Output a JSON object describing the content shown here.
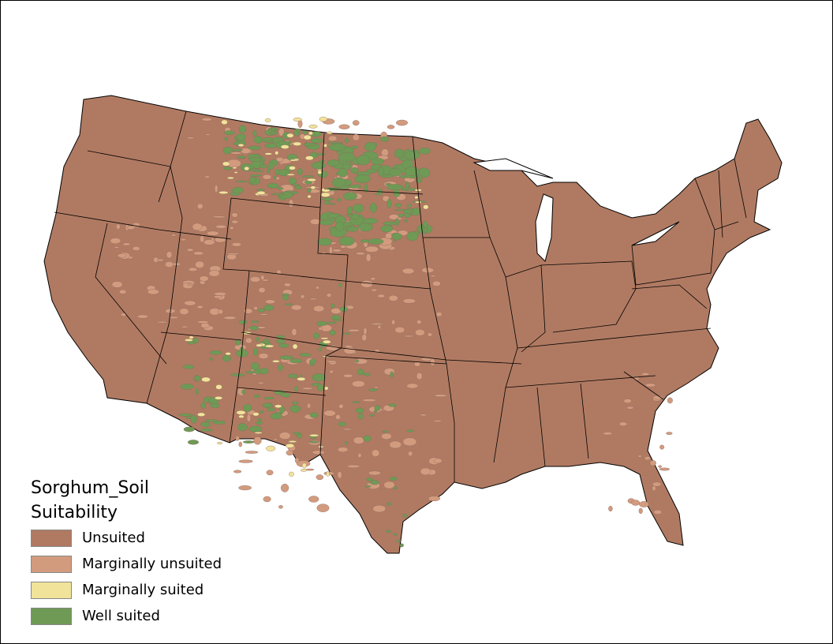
{
  "legend": {
    "title_line1": "Sorghum_Soil",
    "title_line2": "Suitability",
    "items": [
      {
        "label": "Unsuited",
        "color": "#B07A62"
      },
      {
        "label": "Marginally unsuited",
        "color": "#D29B7E"
      },
      {
        "label": "Marginally suited",
        "color": "#F2E39A"
      },
      {
        "label": "Well suited",
        "color": "#6E9A55"
      }
    ]
  },
  "map": {
    "extent": "Contiguous United States",
    "boundary_color": "#000000",
    "no_data_color": "#FFFFFF"
  }
}
